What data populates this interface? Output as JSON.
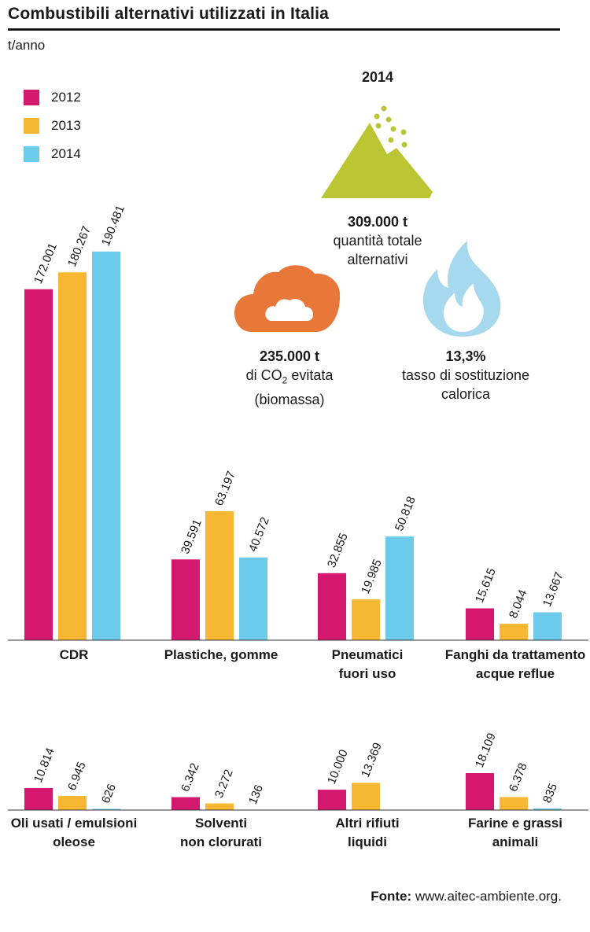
{
  "title": "Combustibili alternativi utilizzati in Italia",
  "unit": "t/anno",
  "colors": {
    "2012": "#d4176f",
    "2013": "#f7b733",
    "2014": "#6ccbea",
    "mountain": "#bcc534",
    "cloud": "#e8773a",
    "flame": "#a6d8ee"
  },
  "legend": [
    {
      "label": "2012",
      "color": "#d4176f"
    },
    {
      "label": "2013",
      "color": "#f7b733"
    },
    {
      "label": "2014",
      "color": "#6ccbea"
    }
  ],
  "infographic": {
    "year": "2014",
    "total": {
      "value": "309.000 t",
      "line1": "quantità totale",
      "line2": "alternativi"
    },
    "co2": {
      "value": "235.000 t",
      "pre": "di CO",
      "sub": "2",
      "post": " evitata",
      "line2": "(biomassa)"
    },
    "substitution": {
      "value": "13,3%",
      "line1": "tasso di sostituzione",
      "line2": "calorica"
    }
  },
  "chart_data": [
    {
      "type": "bar",
      "series": [
        {
          "name": "2012",
          "values": [
            172001,
            39591,
            32855,
            15615
          ]
        },
        {
          "name": "2013",
          "values": [
            180267,
            63197,
            19985,
            8044
          ]
        },
        {
          "name": "2014",
          "values": [
            190481,
            40572,
            50818,
            13667
          ]
        }
      ],
      "categories": [
        [
          "CDR"
        ],
        [
          "Plastiche, gomme"
        ],
        [
          "Pneumatici",
          "fuori uso"
        ],
        [
          "Fanghi da trattamento",
          "acque reflue"
        ]
      ],
      "labels": [
        [
          "172.001",
          "180.267",
          "190.481"
        ],
        [
          "39.591",
          "63.197",
          "40.572"
        ],
        [
          "32.855",
          "19.985",
          "50.818"
        ],
        [
          "15.615",
          "8.044",
          "13.667"
        ]
      ]
    },
    {
      "type": "bar",
      "series": [
        {
          "name": "2012",
          "values": [
            10814,
            6342,
            10000,
            18109
          ]
        },
        {
          "name": "2013",
          "values": [
            6945,
            3272,
            13369,
            6378
          ]
        },
        {
          "name": "2014",
          "values": [
            626,
            136,
            null,
            835
          ]
        }
      ],
      "categories": [
        [
          "Oli usati / emulsioni",
          "oleose"
        ],
        [
          "Solventi",
          "non clorurati"
        ],
        [
          "Altri rifiuti",
          "liquidi"
        ],
        [
          "Farine e grassi",
          "animali"
        ]
      ],
      "labels": [
        [
          "10.814",
          "6.945",
          "626"
        ],
        [
          "6.342",
          "3.272",
          "136"
        ],
        [
          "10.000",
          "13.369",
          ""
        ],
        [
          "18.109",
          "6.378",
          "835"
        ]
      ]
    }
  ],
  "source": {
    "label": "Fonte:",
    "text": " www.aitec-ambiente.org."
  }
}
